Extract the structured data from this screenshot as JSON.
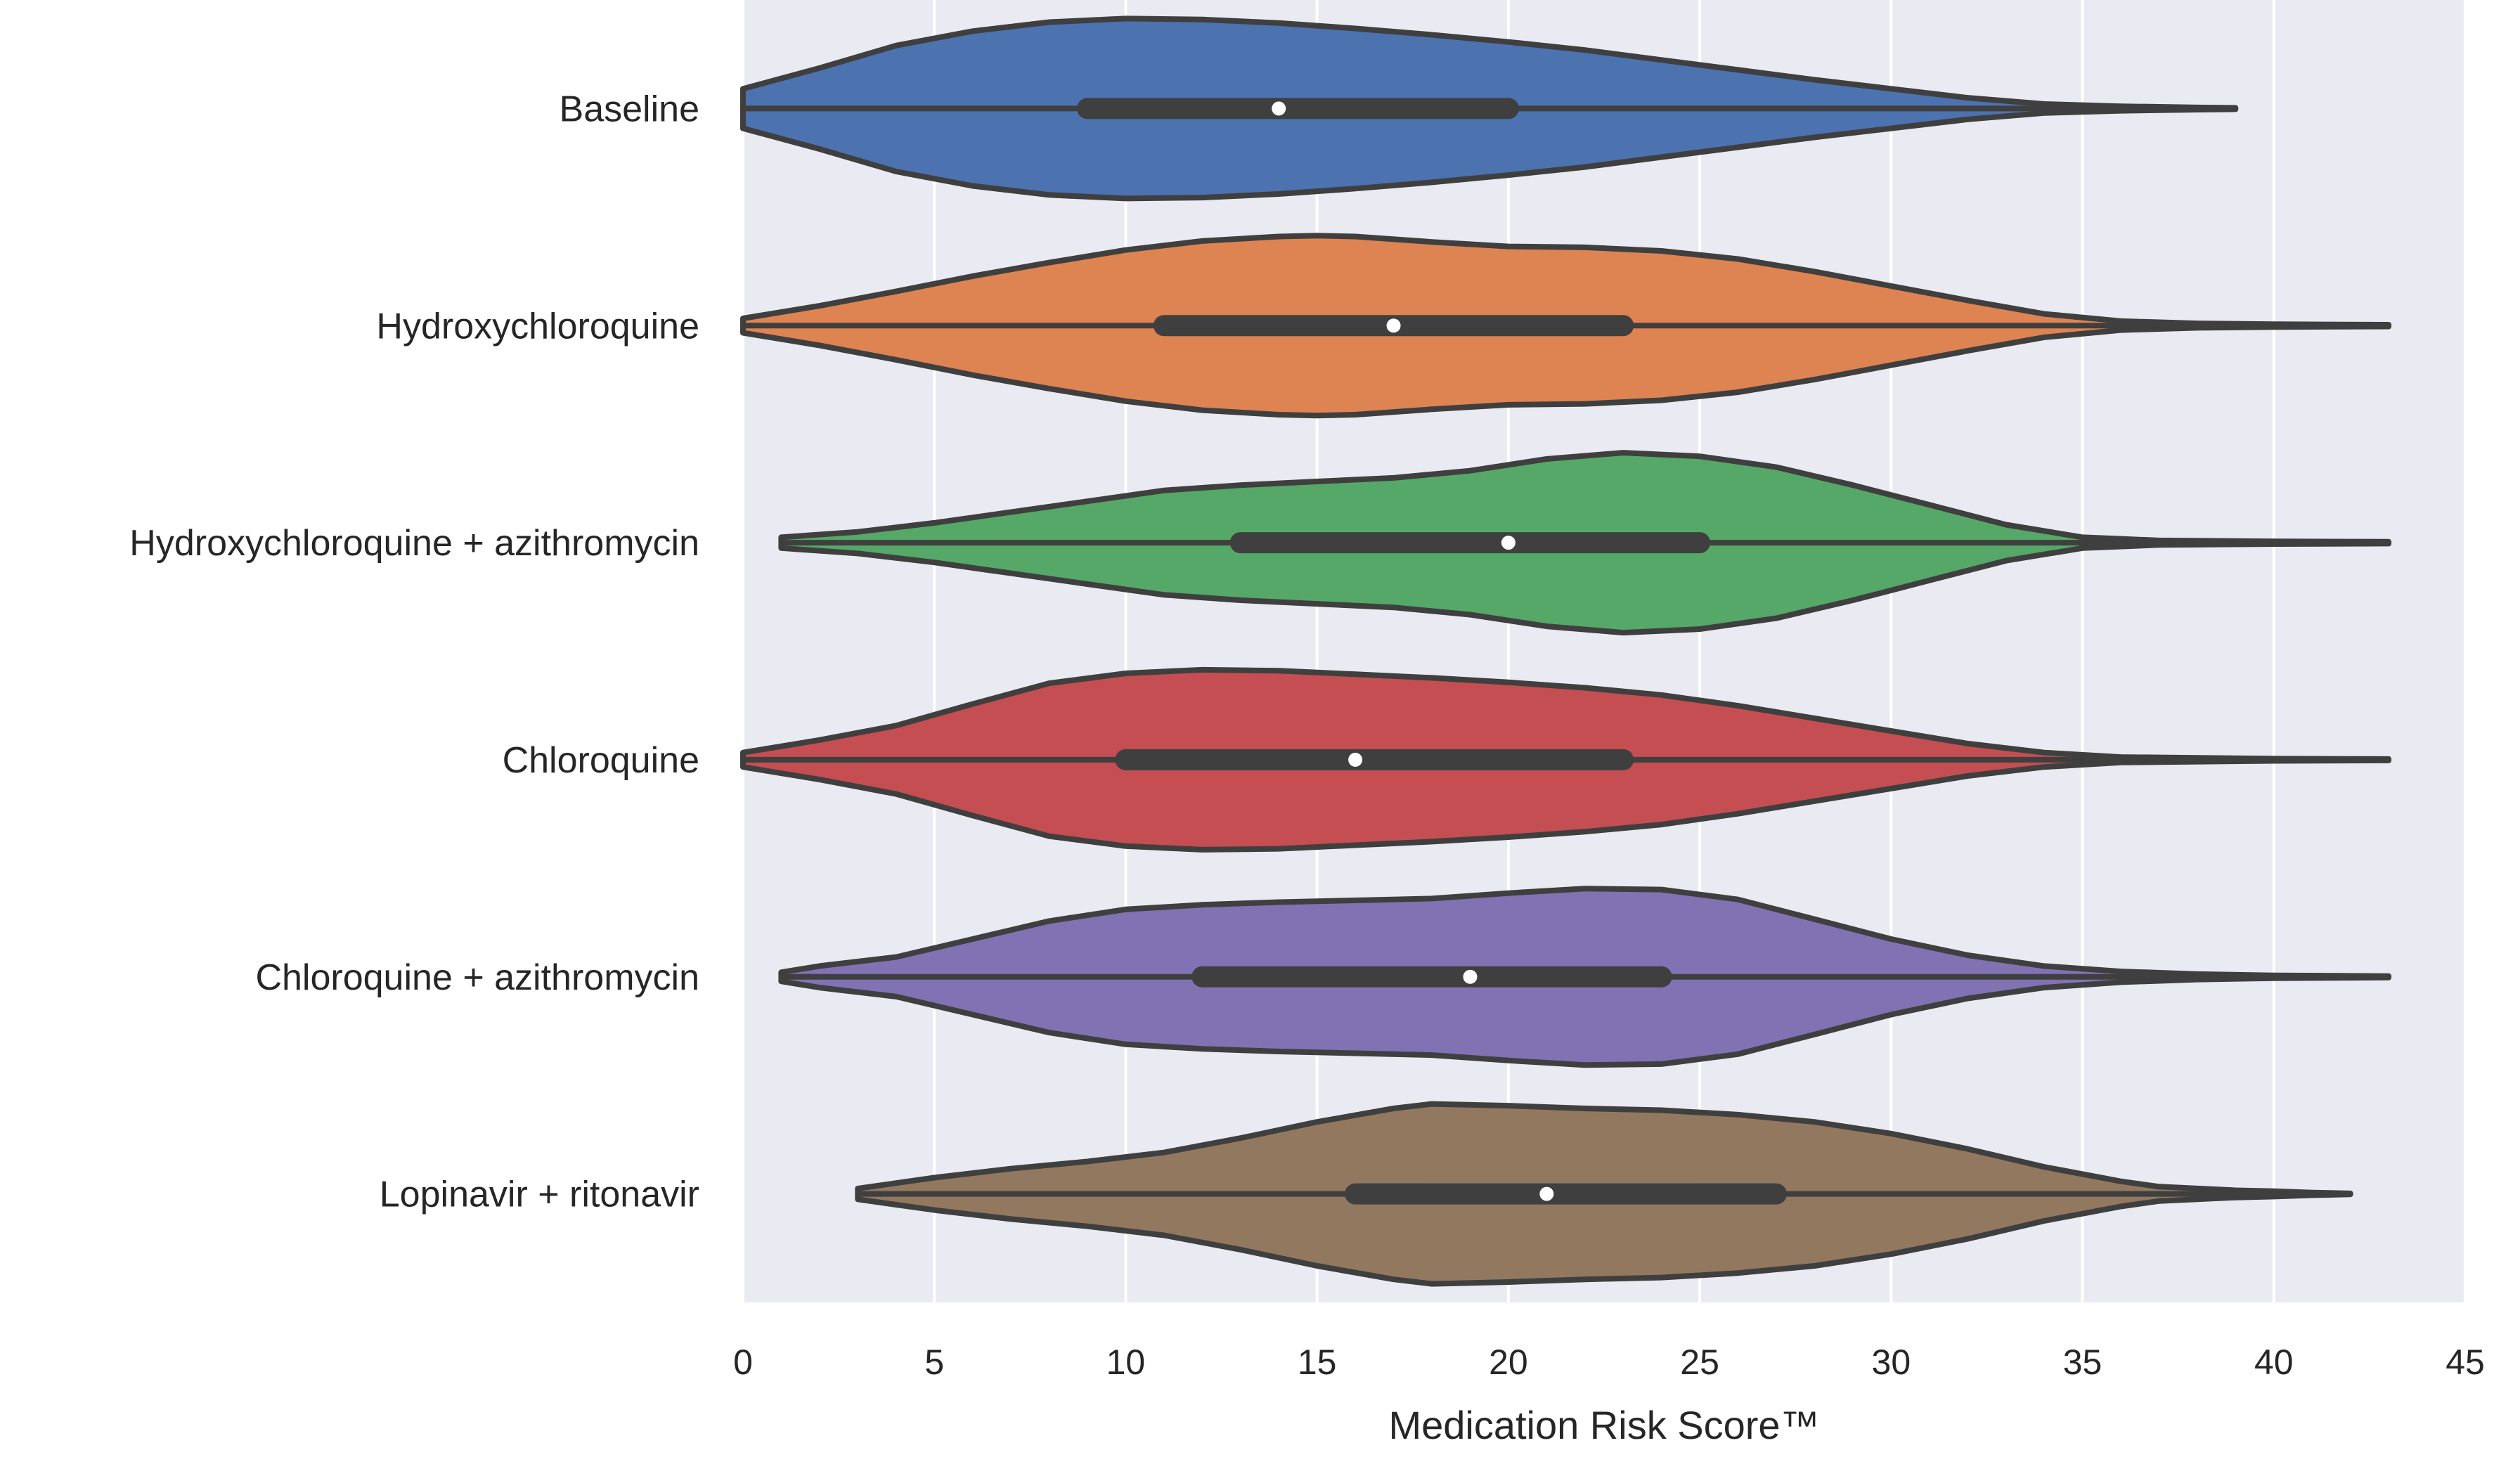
{
  "chart_data": {
    "type": "violin",
    "orientation": "horizontal",
    "title": "",
    "xlabel": "Medication Risk Score™",
    "ylabel": "",
    "xlim": [
      0,
      45
    ],
    "xticks": [
      0,
      5,
      10,
      15,
      20,
      25,
      30,
      35,
      40,
      45
    ],
    "grid": "vertical",
    "background": "#eaeaf2",
    "series": [
      {
        "name": "Baseline",
        "color": "#4c72b0",
        "min": 0,
        "max": 39,
        "q1": 9,
        "median": 14,
        "q3": 20,
        "density": [
          [
            0,
            0.22
          ],
          [
            2,
            0.45
          ],
          [
            4,
            0.7
          ],
          [
            6,
            0.86
          ],
          [
            8,
            0.96
          ],
          [
            10,
            1.0
          ],
          [
            12,
            0.99
          ],
          [
            14,
            0.95
          ],
          [
            16,
            0.89
          ],
          [
            18,
            0.82
          ],
          [
            20,
            0.74
          ],
          [
            22,
            0.65
          ],
          [
            24,
            0.54
          ],
          [
            26,
            0.43
          ],
          [
            28,
            0.32
          ],
          [
            30,
            0.22
          ],
          [
            32,
            0.12
          ],
          [
            34,
            0.05
          ],
          [
            36,
            0.025
          ],
          [
            38,
            0.012
          ],
          [
            39,
            0.008
          ]
        ]
      },
      {
        "name": "Hydroxychloroquine",
        "color": "#dd8452",
        "min": 0,
        "max": 43,
        "q1": 11,
        "median": 17,
        "q3": 23,
        "density": [
          [
            0,
            0.08
          ],
          [
            2,
            0.22
          ],
          [
            4,
            0.38
          ],
          [
            6,
            0.55
          ],
          [
            8,
            0.7
          ],
          [
            10,
            0.84
          ],
          [
            12,
            0.94
          ],
          [
            14,
            0.99
          ],
          [
            15,
            1.0
          ],
          [
            16,
            0.99
          ],
          [
            18,
            0.93
          ],
          [
            20,
            0.88
          ],
          [
            22,
            0.87
          ],
          [
            24,
            0.83
          ],
          [
            26,
            0.74
          ],
          [
            28,
            0.6
          ],
          [
            30,
            0.44
          ],
          [
            32,
            0.28
          ],
          [
            34,
            0.13
          ],
          [
            36,
            0.05
          ],
          [
            38,
            0.025
          ],
          [
            40,
            0.015
          ],
          [
            43,
            0.01
          ]
        ]
      },
      {
        "name": "Hydroxychloroquine + azithromycin",
        "color": "#55a868",
        "min": 1,
        "max": 43,
        "q1": 13,
        "median": 20,
        "q3": 25,
        "density": [
          [
            1,
            0.06
          ],
          [
            3,
            0.12
          ],
          [
            5,
            0.22
          ],
          [
            7,
            0.34
          ],
          [
            9,
            0.46
          ],
          [
            11,
            0.58
          ],
          [
            13,
            0.64
          ],
          [
            15,
            0.68
          ],
          [
            17,
            0.72
          ],
          [
            19,
            0.8
          ],
          [
            21,
            0.93
          ],
          [
            23,
            1.0
          ],
          [
            25,
            0.96
          ],
          [
            27,
            0.84
          ],
          [
            29,
            0.64
          ],
          [
            31,
            0.42
          ],
          [
            33,
            0.2
          ],
          [
            35,
            0.06
          ],
          [
            37,
            0.025
          ],
          [
            40,
            0.015
          ],
          [
            43,
            0.01
          ]
        ]
      },
      {
        "name": "Chloroquine",
        "color": "#c44e52",
        "min": 0,
        "max": 43,
        "q1": 10,
        "median": 16,
        "q3": 23,
        "density": [
          [
            0,
            0.08
          ],
          [
            2,
            0.22
          ],
          [
            4,
            0.38
          ],
          [
            6,
            0.62
          ],
          [
            8,
            0.85
          ],
          [
            10,
            0.96
          ],
          [
            12,
            1.0
          ],
          [
            14,
            0.99
          ],
          [
            16,
            0.95
          ],
          [
            18,
            0.91
          ],
          [
            20,
            0.86
          ],
          [
            22,
            0.8
          ],
          [
            24,
            0.72
          ],
          [
            26,
            0.6
          ],
          [
            28,
            0.46
          ],
          [
            30,
            0.32
          ],
          [
            32,
            0.18
          ],
          [
            34,
            0.08
          ],
          [
            36,
            0.03
          ],
          [
            40,
            0.012
          ],
          [
            43,
            0.008
          ]
        ]
      },
      {
        "name": "Chloroquine + azithromycin",
        "color": "#8172b3",
        "min": 1,
        "max": 43,
        "q1": 12,
        "median": 19,
        "q3": 24,
        "density": [
          [
            1,
            0.05
          ],
          [
            2,
            0.12
          ],
          [
            4,
            0.22
          ],
          [
            6,
            0.42
          ],
          [
            8,
            0.62
          ],
          [
            10,
            0.75
          ],
          [
            12,
            0.8
          ],
          [
            14,
            0.83
          ],
          [
            16,
            0.85
          ],
          [
            18,
            0.87
          ],
          [
            20,
            0.93
          ],
          [
            22,
            0.98
          ],
          [
            24,
            0.97
          ],
          [
            26,
            0.86
          ],
          [
            28,
            0.64
          ],
          [
            30,
            0.42
          ],
          [
            32,
            0.24
          ],
          [
            34,
            0.12
          ],
          [
            36,
            0.06
          ],
          [
            38,
            0.03
          ],
          [
            40,
            0.015
          ],
          [
            43,
            0.008
          ]
        ]
      },
      {
        "name": "Lopinavir + ritonavir",
        "color": "#937860",
        "min": 3,
        "max": 42,
        "q1": 16,
        "median": 21,
        "q3": 27,
        "density": [
          [
            3,
            0.06
          ],
          [
            5,
            0.18
          ],
          [
            7,
            0.28
          ],
          [
            9,
            0.36
          ],
          [
            11,
            0.46
          ],
          [
            13,
            0.62
          ],
          [
            15,
            0.8
          ],
          [
            17,
            0.95
          ],
          [
            18,
            1.0
          ],
          [
            20,
            0.98
          ],
          [
            22,
            0.95
          ],
          [
            24,
            0.93
          ],
          [
            26,
            0.88
          ],
          [
            28,
            0.8
          ],
          [
            30,
            0.67
          ],
          [
            32,
            0.5
          ],
          [
            34,
            0.3
          ],
          [
            36,
            0.14
          ],
          [
            37,
            0.08
          ],
          [
            39,
            0.04
          ],
          [
            40,
            0.03
          ],
          [
            41,
            0.015
          ],
          [
            42,
            0.005
          ]
        ]
      }
    ]
  }
}
